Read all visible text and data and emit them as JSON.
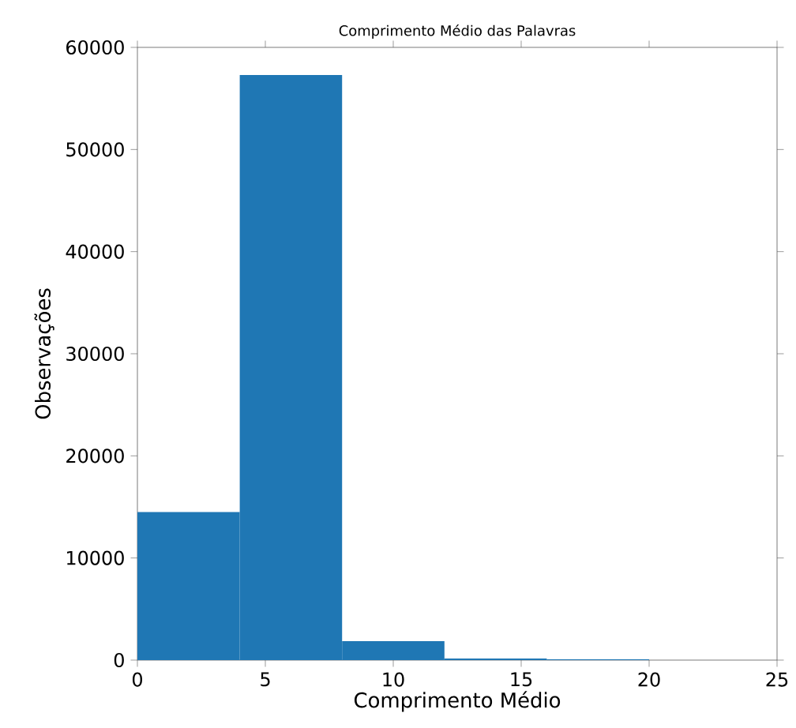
{
  "chart_data": {
    "type": "histogram",
    "title": "Comprimento Médio das Palavras",
    "xlabel": "Comprimento Médio",
    "ylabel": "Observações",
    "bins": [
      0,
      4,
      8,
      12,
      16,
      20
    ],
    "values": [
      14500,
      57300,
      1850,
      150,
      80
    ],
    "color": "#1f77b4",
    "xlim": [
      0,
      25
    ],
    "xticks": [
      0,
      5,
      10,
      15,
      20,
      25
    ],
    "ylim": [
      0,
      60000
    ],
    "yticks": [
      0,
      10000,
      20000,
      30000,
      40000,
      50000,
      60000
    ]
  }
}
